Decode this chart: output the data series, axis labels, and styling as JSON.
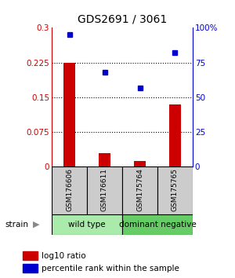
{
  "title": "GDS2691 / 3061",
  "samples": [
    "GSM176606",
    "GSM176611",
    "GSM175764",
    "GSM175765"
  ],
  "log10_ratio": [
    0.225,
    0.03,
    0.012,
    0.135
  ],
  "percentile_rank": [
    95,
    68,
    57,
    82
  ],
  "bar_color": "#cc0000",
  "scatter_color": "#0000cc",
  "ylim_left": [
    0,
    0.3
  ],
  "ylim_right": [
    0,
    100
  ],
  "yticks_left": [
    0,
    0.075,
    0.15,
    0.225,
    0.3
  ],
  "ytick_labels_left": [
    "0",
    "0.075",
    "0.15",
    "0.225",
    "0.3"
  ],
  "yticks_right": [
    0,
    25,
    50,
    75,
    100
  ],
  "ytick_labels_right": [
    "0",
    "25",
    "50",
    "75",
    "100%"
  ],
  "hlines": [
    0.075,
    0.15,
    0.225
  ],
  "groups": [
    {
      "label": "wild type",
      "indices": [
        0,
        1
      ],
      "color": "#aaeaaa"
    },
    {
      "label": "dominant negative",
      "indices": [
        2,
        3
      ],
      "color": "#66cc66"
    }
  ],
  "strain_label": "strain",
  "legend_items": [
    {
      "color": "#cc0000",
      "label": "log10 ratio"
    },
    {
      "color": "#0000cc",
      "label": "percentile rank within the sample"
    }
  ],
  "bg_color": "#ffffff",
  "sample_box_color": "#cccccc",
  "grid_color": "#000000",
  "bar_width": 0.35
}
